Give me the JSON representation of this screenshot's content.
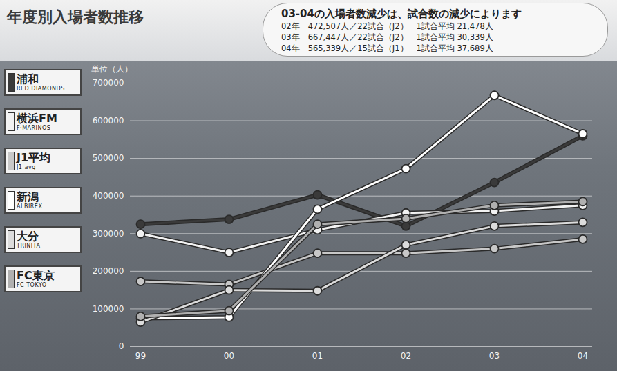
{
  "chart_data": {
    "type": "line",
    "title": "年度別入場者数推移",
    "annotation": {
      "title": "03-04の入場者数減少は、試合数の減少によります",
      "lines": [
        "02年　472,507人／22試合（J2）　1試合平均 21,478人",
        "03年　667,447人／22試合（J2）　1試合平均 30,339人",
        "04年　565,339人／15試合（J1）　1試合平均 37,689人"
      ]
    },
    "y_label": "単位（人）",
    "categories": [
      "99",
      "00",
      "01",
      "02",
      "03",
      "04"
    ],
    "ylim": [
      0,
      700000
    ],
    "yticks": [
      0,
      100000,
      200000,
      300000,
      400000,
      500000,
      600000,
      700000
    ],
    "grid": true,
    "legend": "left",
    "marker": "circle",
    "series": [
      {
        "name": "浦和",
        "name_en": "RED DIAMONDS",
        "color": "#3a3a3a",
        "values": [
          325000,
          338000,
          403000,
          320000,
          436000,
          560000
        ]
      },
      {
        "name": "横浜FM",
        "name_en": "F·MARINOS",
        "color": "#f2f2f2",
        "values": [
          300000,
          250000,
          310000,
          355000,
          360000,
          375000
        ]
      },
      {
        "name": "J1平均",
        "name_en": "J1 avg",
        "color": "#c8c8c8",
        "values": [
          173000,
          165000,
          248000,
          248000,
          260000,
          285000
        ]
      },
      {
        "name": "新潟",
        "name_en": "ALBIREX",
        "color": "#ffffff",
        "values": [
          75000,
          78000,
          365000,
          472507,
          667447,
          565339
        ]
      },
      {
        "name": "大分",
        "name_en": "TRINITA",
        "color": "#dcdcdc",
        "values": [
          65000,
          150000,
          148000,
          270000,
          320000,
          330000
        ]
      },
      {
        "name": "FC東京",
        "name_en": "FC TOKYO",
        "color": "#b0b0b0",
        "values": [
          80000,
          95000,
          325000,
          340000,
          375000,
          385000
        ]
      }
    ]
  }
}
